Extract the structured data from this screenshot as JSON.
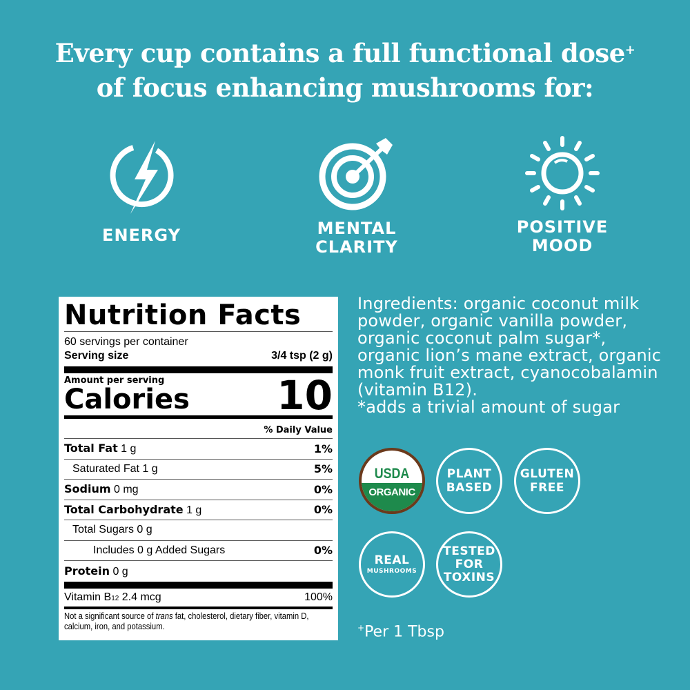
{
  "headline": {
    "line1": "Every cup contains a full functional dose",
    "sup": "+",
    "line2": "of focus enhancing mushrooms for:"
  },
  "benefits": [
    {
      "icon": "lightning-bolt-icon",
      "label": "ENERGY"
    },
    {
      "icon": "target-arrow-icon",
      "label1": "MENTAL",
      "label2": "CLARITY"
    },
    {
      "icon": "sun-icon",
      "label1": "POSITIVE",
      "label2": "MOOD"
    }
  ],
  "nutrition": {
    "title": "Nutrition Facts",
    "servings": "60 servings per container",
    "serving_size_label": "Serving size",
    "serving_size_value": "3/4 tsp (2 g)",
    "amount_per_serving": "Amount per serving",
    "calories_label": "Calories",
    "calories_value": "10",
    "dv_header": "% Daily Value",
    "rows": [
      {
        "bold": "Total Fat",
        "amount": "1 g",
        "dv": "1%"
      },
      {
        "name": "Saturated Fat 1 g",
        "dv": "5%"
      },
      {
        "bold": "Sodium",
        "amount": "0 mg",
        "dv": "0%"
      },
      {
        "bold": "Total Carbohydrate",
        "amount": "1 g",
        "dv": "0%"
      },
      {
        "name": "Total Sugars 0 g",
        "dv": ""
      },
      {
        "name": "Includes 0 g Added Sugars",
        "dv": "0%"
      },
      {
        "bold": "Protein",
        "amount": "0 g",
        "dv": ""
      }
    ],
    "vitamin": {
      "name": "Vitamin B",
      "sub": "12",
      "amount": "2.4 mcg",
      "dv": "100%"
    },
    "footnote_pre": "Not a significant source of ",
    "footnote_italic": "trans",
    "footnote_post": " fat, cholesterol, dietary fiber, vitamin D, calcium, iron, and potassium."
  },
  "ingredients": {
    "text": "Ingredients: organic coconut milk powder, organic vanilla powder, organic coconut palm sugar*, organic lion’s mane extract, organic monk fruit extract, cyanocobalamin (vitamin B12).",
    "note": "*adds a trivial amount of sugar"
  },
  "badges": {
    "usda": {
      "top": "USDA",
      "bottom": "ORGANIC"
    },
    "plant": [
      "PLANT",
      "BASED"
    ],
    "gluten": [
      "GLUTEN",
      "FREE"
    ],
    "real": [
      "REAL",
      "MUSHROOMS"
    ],
    "tested": [
      "TESTED",
      "FOR",
      "TOXINS"
    ]
  },
  "footnote": {
    "sup": "+",
    "text": "Per 1 Tbsp"
  },
  "colors": {
    "background": "#35a4b5",
    "usda_green": "#1e8a4c",
    "usda_brown": "#6b3a1c"
  }
}
